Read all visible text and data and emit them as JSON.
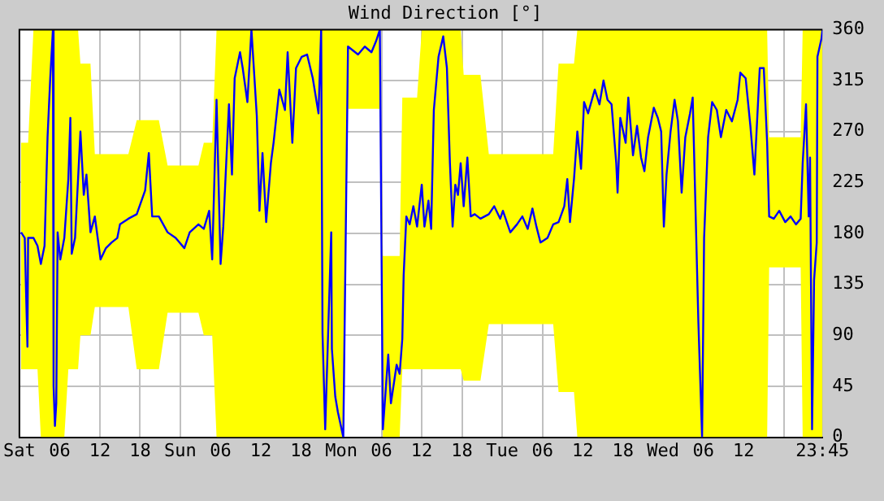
{
  "chart_data": {
    "type": "line",
    "title": "Wind Direction [°]",
    "xlim": [
      "--01-06T00:00",
      "--01-10T23:45"
    ],
    "ylim": [
      0,
      360
    ],
    "xticks": [
      {
        "value": "--01-06T00:00",
        "label": "Sat"
      },
      {
        "value": "--01-06T06:00",
        "label": "06"
      },
      {
        "value": "--01-06T12:00",
        "label": "12"
      },
      {
        "value": "--01-06T18:00",
        "label": "18"
      },
      {
        "value": "--01-07T00:00",
        "label": "Sun"
      },
      {
        "value": "--01-07T06:00",
        "label": "06"
      },
      {
        "value": "--01-07T12:00",
        "label": "12"
      },
      {
        "value": "--01-07T18:00",
        "label": "18"
      },
      {
        "value": "--01-08T00:00",
        "label": "Mon"
      },
      {
        "value": "--01-08T06:00",
        "label": "06"
      },
      {
        "value": "--01-08T12:00",
        "label": "12"
      },
      {
        "value": "--01-08T18:00",
        "label": "18"
      },
      {
        "value": "--01-09T00:00",
        "label": "Tue"
      },
      {
        "value": "--01-09T06:00",
        "label": "06"
      },
      {
        "value": "--01-09T12:00",
        "label": "12"
      },
      {
        "value": "--01-09T18:00",
        "label": "18"
      },
      {
        "value": "--01-10T00:00",
        "label": "Wed"
      },
      {
        "value": "--01-10T06:00",
        "label": "06"
      },
      {
        "value": "--01-10T12:00",
        "label": "12"
      },
      {
        "value": "--01-10T18:00",
        "label": null
      },
      {
        "value": "--01-10T23:45",
        "label": "23:45"
      }
    ],
    "yticks": [
      0,
      45,
      90,
      135,
      180,
      225,
      270,
      315,
      360
    ],
    "grid": true,
    "legend": false,
    "series": [
      {
        "color": "#0000ff",
        "x": [
          "--01-06T00:15",
          "--01-06T00:48",
          "--01-06T01:00",
          "--01-06T01:12",
          "--01-06T01:18",
          "--01-06T02:06",
          "--01-06T02:42",
          "--01-06T03:12",
          "--01-06T03:45",
          "--01-06T04:12",
          "--01-06T04:36",
          "--01-06T05:00",
          "--01-06T05:06",
          "--01-06T05:18",
          "--01-06T05:30",
          "--01-06T05:42",
          "--01-06T06:06",
          "--01-06T06:42",
          "--01-06T07:18",
          "--01-06T07:36",
          "--01-06T07:48",
          "--01-06T08:18",
          "--01-06T08:45",
          "--01-06T09:06",
          "--01-06T09:36",
          "--01-06T10:00",
          "--01-06T10:36",
          "--01-06T11:15",
          "--01-06T12:06",
          "--01-06T12:54",
          "--01-06T13:45",
          "--01-06T14:36",
          "--01-06T15:00",
          "--01-06T16:15",
          "--01-06T17:30",
          "--01-06T18:45",
          "--01-06T19:18",
          "--01-06T19:48",
          "--01-06T20:48",
          "--01-06T22:06",
          "--01-06T23:18",
          "--01-07T00:36",
          "--01-07T01:24",
          "--01-07T02:42",
          "--01-07T03:30",
          "--01-07T04:18",
          "--01-07T04:45",
          "--01-07T05:24",
          "--01-07T06:00",
          "--01-07T06:24",
          "--01-07T07:15",
          "--01-07T07:42",
          "--01-07T08:06",
          "--01-07T08:54",
          "--01-07T09:18",
          "--01-07T10:00",
          "--01-07T10:36",
          "--01-07T11:24",
          "--01-07T11:48",
          "--01-07T12:15",
          "--01-07T12:48",
          "--01-07T13:30",
          "--01-07T13:54",
          "--01-07T14:45",
          "--01-07T15:36",
          "--01-07T16:00",
          "--01-07T16:42",
          "--01-07T17:15",
          "--01-07T18:06",
          "--01-07T18:54",
          "--01-07T19:45",
          "--01-07T20:36",
          "--01-07T21:00",
          "--01-07T21:12",
          "--01-07T21:36",
          "--01-07T22:30",
          "--01-07T22:36",
          "--01-07T23:06",
          "--01-07T23:30",
          "--01-08T00:18",
          "--01-08T01:00",
          "--01-08T02:30",
          "--01-08T03:30",
          "--01-08T04:30",
          "--01-08T05:12",
          "--01-08T05:45",
          "--01-08T06:12",
          "--01-08T07:00",
          "--01-08T07:24",
          "--01-08T08:15",
          "--01-08T08:42",
          "--01-08T09:06",
          "--01-08T09:18",
          "--01-08T09:42",
          "--01-08T10:12",
          "--01-08T10:45",
          "--01-08T11:18",
          "--01-08T12:00",
          "--01-08T12:24",
          "--01-08T13:00",
          "--01-08T13:24",
          "--01-08T13:48",
          "--01-08T14:30",
          "--01-08T15:12",
          "--01-08T15:45",
          "--01-08T16:12",
          "--01-08T16:36",
          "--01-08T17:00",
          "--01-08T17:24",
          "--01-08T17:48",
          "--01-08T18:15",
          "--01-08T18:48",
          "--01-08T19:18",
          "--01-08T19:54",
          "--01-08T20:45",
          "--01-08T22:00",
          "--01-08T22:48",
          "--01-08T23:42",
          "--01-09T00:06",
          "--01-09T01:12",
          "--01-09T02:12",
          "--01-09T03:00",
          "--01-09T03:48",
          "--01-09T04:30",
          "--01-09T05:06",
          "--01-09T05:42",
          "--01-09T06:45",
          "--01-09T07:36",
          "--01-09T08:24",
          "--01-09T09:15",
          "--01-09T09:42",
          "--01-09T10:06",
          "--01-09T10:42",
          "--01-09T11:12",
          "--01-09T11:45",
          "--01-09T12:12",
          "--01-09T12:48",
          "--01-09T13:48",
          "--01-09T14:30",
          "--01-09T15:06",
          "--01-09T15:42",
          "--01-09T16:18",
          "--01-09T17:00",
          "--01-09T17:12",
          "--01-09T17:36",
          "--01-09T18:24",
          "--01-09T18:48",
          "--01-09T19:30",
          "--01-09T20:06",
          "--01-09T20:42",
          "--01-09T21:12",
          "--01-09T21:45",
          "--01-09T22:36",
          "--01-09T23:12",
          "--01-09T23:42",
          "--01-10T00:06",
          "--01-10T00:30",
          "--01-10T01:06",
          "--01-10T01:42",
          "--01-10T02:12",
          "--01-10T02:45",
          "--01-10T03:18",
          "--01-10T04:00",
          "--01-10T04:24",
          "--01-10T05:15",
          "--01-10T05:48",
          "--01-10T06:06",
          "--01-10T06:42",
          "--01-10T07:18",
          "--01-10T08:00",
          "--01-10T08:36",
          "--01-10T09:24",
          "--01-10T10:15",
          "--01-10T11:06",
          "--01-10T11:30",
          "--01-10T12:18",
          "--01-10T13:00",
          "--01-10T13:36",
          "--01-10T14:24",
          "--01-10T15:00",
          "--01-10T15:30",
          "--01-10T15:48",
          "--01-10T16:30",
          "--01-10T17:18",
          "--01-10T18:12",
          "--01-10T19:00",
          "--01-10T19:48",
          "--01-10T20:30",
          "--01-10T20:48",
          "--01-10T21:18",
          "--01-10T21:42",
          "--01-10T21:54",
          "--01-10T22:12",
          "--01-10T22:30",
          "--01-10T22:54",
          "--01-10T23:00",
          "--01-10T23:36",
          "--01-10T23:45"
        ],
        "values": [
          181,
          176,
          127,
          80,
          176,
          176,
          169,
          153,
          169,
          265,
          317,
          360,
          45,
          10,
          30,
          181,
          157,
          176,
          228,
          282,
          162,
          176,
          228,
          270,
          214,
          232,
          181,
          195,
          157,
          167,
          172,
          176,
          188,
          193,
          197,
          218,
          251,
          195,
          195,
          181,
          176,
          167,
          181,
          188,
          184,
          200,
          157,
          298,
          153,
          186,
          294,
          232,
          317,
          340,
          326,
          296,
          360,
          284,
          200,
          251,
          190,
          242,
          260,
          307,
          289,
          340,
          260,
          326,
          336,
          338,
          317,
          286,
          360,
          92,
          7,
          181,
          78,
          36,
          22,
          0,
          345,
          338,
          345,
          340,
          350,
          360,
          7,
          73,
          30,
          64,
          56,
          87,
          143,
          195,
          188,
          204,
          186,
          223,
          186,
          209,
          184,
          289,
          336,
          354,
          326,
          242,
          186,
          223,
          214,
          242,
          204,
          247,
          195,
          197,
          193,
          197,
          204,
          193,
          200,
          181,
          188,
          195,
          184,
          202,
          186,
          172,
          176,
          188,
          190,
          204,
          228,
          190,
          228,
          270,
          237,
          296,
          286,
          307,
          294,
          315,
          298,
          294,
          242,
          216,
          282,
          260,
          300,
          249,
          275,
          247,
          235,
          265,
          291,
          282,
          270,
          186,
          232,
          270,
          298,
          279,
          216,
          265,
          286,
          300,
          101,
          0,
          176,
          265,
          296,
          289,
          265,
          289,
          279,
          298,
          322,
          317,
          275,
          232,
          326,
          326,
          260,
          195,
          193,
          200,
          190,
          195,
          188,
          193,
          242,
          294,
          195,
          247,
          7,
          139,
          172,
          336,
          352,
          360
        ],
        "lower": [
          60,
          60,
          60,
          60,
          60,
          60,
          60,
          0,
          0,
          0,
          0,
          0,
          0,
          0,
          0,
          0,
          0,
          0,
          60,
          60,
          60,
          60,
          60,
          90,
          90,
          90,
          90,
          115,
          115,
          115,
          115,
          115,
          115,
          115,
          60,
          60,
          60,
          60,
          60,
          110,
          110,
          110,
          110,
          110,
          90,
          90,
          90,
          0,
          0,
          0,
          0,
          0,
          0,
          0,
          0,
          0,
          0,
          0,
          0,
          0,
          0,
          0,
          0,
          0,
          0,
          0,
          0,
          0,
          0,
          0,
          0,
          0,
          0,
          0,
          0,
          0,
          0,
          0,
          0,
          0,
          290,
          290,
          290,
          290,
          290,
          290,
          0,
          0,
          0,
          0,
          0,
          60,
          60,
          60,
          60,
          60,
          60,
          60,
          60,
          60,
          60,
          60,
          60,
          60,
          60,
          60,
          60,
          60,
          60,
          60,
          50,
          50,
          50,
          50,
          50,
          100,
          100,
          100,
          100,
          100,
          100,
          100,
          100,
          100,
          100,
          100,
          100,
          100,
          40,
          40,
          40,
          40,
          40,
          0,
          0,
          0,
          0,
          0,
          0,
          0,
          0,
          0,
          0,
          0,
          0,
          0,
          0,
          0,
          0,
          0,
          0,
          0,
          0,
          0,
          0,
          0,
          0,
          0,
          0,
          0,
          0,
          0,
          0,
          0,
          0,
          0,
          0,
          0,
          0,
          0,
          0,
          0,
          0,
          0,
          0,
          0,
          0,
          0,
          0,
          0,
          0,
          150,
          150,
          150,
          150,
          150,
          150,
          150,
          0,
          0,
          0,
          0,
          0,
          0,
          0,
          0,
          0,
          0
        ],
        "upper": [
          260,
          260,
          260,
          260,
          260,
          360,
          360,
          360,
          360,
          360,
          360,
          360,
          360,
          360,
          360,
          360,
          360,
          360,
          360,
          360,
          360,
          360,
          360,
          330,
          330,
          330,
          330,
          250,
          250,
          250,
          250,
          250,
          250,
          250,
          280,
          280,
          280,
          280,
          280,
          240,
          240,
          240,
          240,
          240,
          260,
          260,
          260,
          360,
          360,
          360,
          360,
          360,
          360,
          360,
          360,
          360,
          360,
          360,
          360,
          360,
          360,
          360,
          360,
          360,
          360,
          360,
          360,
          360,
          360,
          360,
          360,
          360,
          360,
          360,
          360,
          360,
          360,
          360,
          360,
          360,
          360,
          360,
          360,
          360,
          360,
          360,
          160,
          160,
          160,
          160,
          160,
          300,
          300,
          300,
          300,
          300,
          300,
          360,
          360,
          360,
          360,
          360,
          360,
          360,
          360,
          360,
          360,
          360,
          360,
          360,
          320,
          320,
          320,
          320,
          320,
          250,
          250,
          250,
          250,
          250,
          250,
          250,
          250,
          250,
          250,
          250,
          250,
          250,
          330,
          330,
          330,
          330,
          330,
          360,
          360,
          360,
          360,
          360,
          360,
          360,
          360,
          360,
          360,
          360,
          360,
          360,
          360,
          360,
          360,
          360,
          360,
          360,
          360,
          360,
          360,
          360,
          360,
          360,
          360,
          360,
          360,
          360,
          360,
          360,
          360,
          360,
          360,
          360,
          360,
          360,
          360,
          360,
          360,
          360,
          360,
          360,
          360,
          360,
          360,
          360,
          360,
          265,
          265,
          265,
          265,
          265,
          265,
          265,
          360,
          360,
          360,
          360,
          360,
          360,
          360,
          360,
          360,
          360
        ]
      }
    ]
  }
}
